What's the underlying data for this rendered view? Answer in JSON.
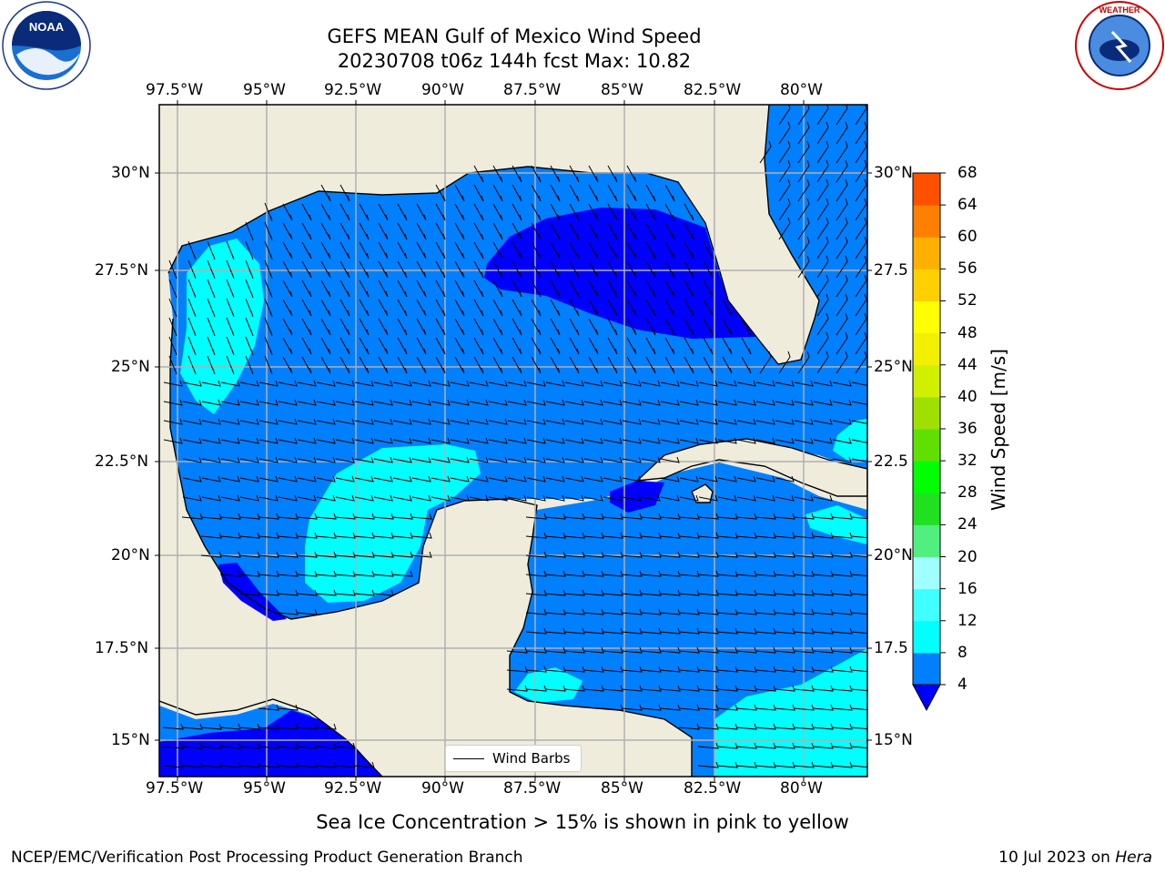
{
  "title": {
    "line1": "GEFS MEAN Gulf of Mexico Wind Speed",
    "line2": "20230708 t06z 144h fcst   Max: 10.82"
  },
  "longitude_ticks": [
    "97.5°W",
    "95°W",
    "92.5°W",
    "90°W",
    "87.5°W",
    "85°W",
    "82.5°W",
    "80°W"
  ],
  "latitude_ticks_left": [
    "30°N",
    "27.5°N",
    "25°N",
    "22.5°N",
    "20°N",
    "17.5°N",
    "15°N"
  ],
  "latitude_ticks_right": [
    "30°N",
    "27.5",
    "25°N",
    "22.5",
    "20°N",
    "17.5",
    "15°N"
  ],
  "colorbar": {
    "label": "Wind Speed [m/s]",
    "ticks": [
      "4",
      "8",
      "12",
      "16",
      "20",
      "24",
      "28",
      "32",
      "36",
      "40",
      "44",
      "48",
      "52",
      "56",
      "60",
      "64",
      "68"
    ],
    "colors": [
      "#0080ff",
      "#00ffff",
      "#40ffff",
      "#a0ffff",
      "#50f080",
      "#20e020",
      "#00ff00",
      "#60e000",
      "#a0e000",
      "#d0f000",
      "#f0f000",
      "#ffff00",
      "#ffd000",
      "#ffb000",
      "#ff8000",
      "#ff5000",
      "#ff2000",
      "#ff0000"
    ],
    "under_color": "#0000ff"
  },
  "legend": {
    "label": "Wind Barbs"
  },
  "caption": "Sea Ice Concentration > 15% is shown in pink to yellow",
  "footer": {
    "left": "NCEP/EMC/Verification Post Processing Product Generation Branch",
    "right_date": "10 Jul 2023 on ",
    "right_host": "Hera"
  },
  "logos": {
    "left": "NOAA",
    "right": "NATIONAL WEATHER SERVICE"
  },
  "colors": {
    "land": "#efecdc",
    "water_4_8": "#0080ff",
    "water_under_4": "#0000ff",
    "water_8_12": "#00ffff",
    "grid": "#b0b0b0"
  }
}
